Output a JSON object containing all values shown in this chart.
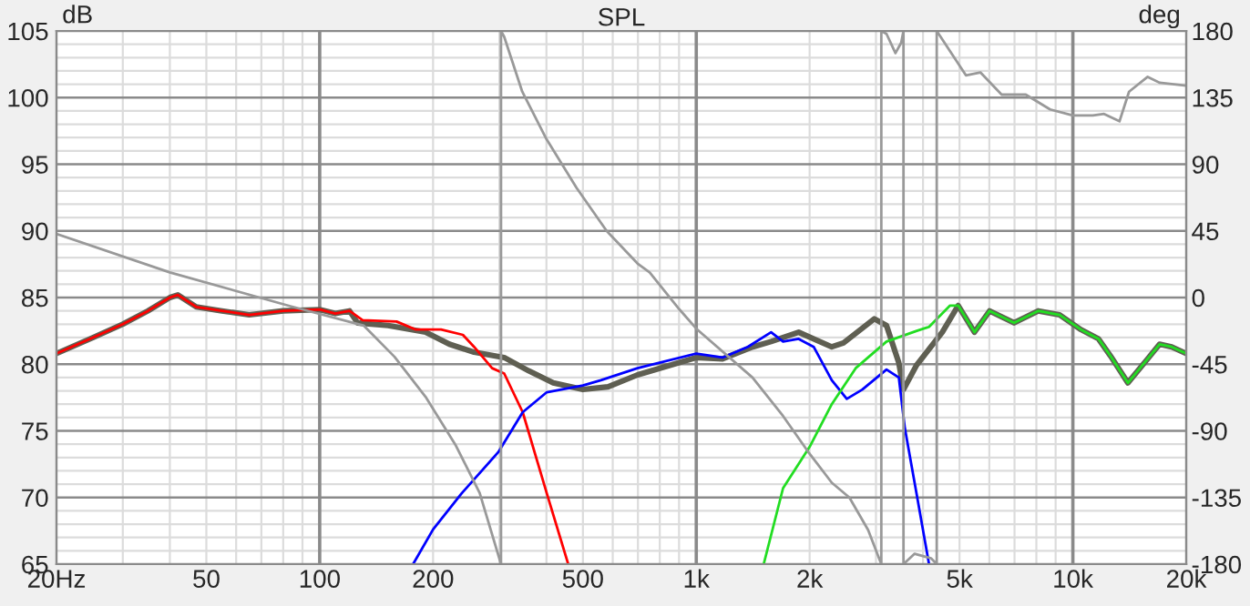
{
  "chart_data": {
    "type": "line",
    "title": "SPL",
    "ylabel": "dB",
    "y2label": "deg",
    "log": "x",
    "grid": true,
    "legend": false,
    "xlim": [
      20,
      20000
    ],
    "xticks": [
      {
        "value": 20,
        "label": "20Hz"
      },
      50,
      100,
      200,
      500,
      {
        "value": 1000,
        "label": "1k"
      },
      {
        "value": 2000,
        "label": "2k"
      },
      {
        "value": 5000,
        "label": "5k"
      },
      {
        "value": 10000,
        "label": "10k"
      },
      {
        "value": 20000,
        "label": "20k"
      }
    ],
    "ylim": [
      65,
      105
    ],
    "yticks": [
      65,
      70,
      75,
      80,
      85,
      90,
      95,
      100,
      105
    ],
    "y2lim": [
      -180,
      180
    ],
    "y2ticks": [
      -180,
      -135,
      -90,
      -45,
      0,
      45,
      90,
      135,
      180
    ],
    "series": [
      {
        "color": "#999999",
        "axis": "y2",
        "x": [
          20,
          40,
          84,
          131,
          158,
          191,
          230,
          266,
          303,
          303,
          309,
          345,
          400,
          481,
          578,
          698,
          752,
          902,
          1000,
          1410,
          1700,
          1980,
          2290,
          2550,
          2860,
          3100,
          3100,
          3200,
          3380,
          3500,
          3550,
          3550,
          3800,
          4200,
          4350,
          4350,
          4900,
          5200,
          5680,
          6470,
          7500,
          8700,
          10000,
          11300,
          12100,
          13300,
          14100,
          15800,
          17000,
          20000
        ],
        "values": [
          43,
          17,
          -6,
          -19,
          -40,
          -67,
          -100,
          -132,
          -180,
          180,
          176,
          139,
          107,
          74,
          45,
          23,
          17,
          -8,
          -21,
          -54,
          -80,
          -104,
          -125,
          -135,
          -157,
          -180,
          180,
          178,
          165,
          172,
          180,
          -180,
          -173,
          -176,
          -180,
          180,
          160,
          150,
          152,
          137,
          137,
          127,
          123,
          123,
          124,
          119,
          139,
          149,
          145,
          143
        ]
      },
      {
        "color": "#5f5f52",
        "x": [
          20,
          25,
          30,
          35,
          40,
          42,
          47,
          55,
          65,
          80,
          100,
          110,
          120,
          126,
          152,
          191,
          221,
          257,
          309,
          359,
          417,
          500,
          583,
          698,
          1000,
          1174,
          1413,
          1580,
          1870,
          2290,
          2460,
          2970,
          3200,
          3450,
          3550,
          3840,
          4500,
          4960,
          5480,
          6010,
          6980,
          8090,
          9220,
          10500,
          11700,
          12600,
          14000,
          15800,
          17000,
          18300,
          20000
        ],
        "values": [
          80.8,
          82.0,
          83.0,
          84.0,
          85.0,
          85.2,
          84.3,
          84.0,
          83.7,
          84.0,
          84.1,
          83.8,
          84.0,
          83.1,
          82.9,
          82.4,
          81.5,
          80.9,
          80.5,
          79.5,
          78.6,
          78.1,
          78.3,
          79.2,
          80.5,
          80.4,
          81.3,
          81.7,
          82.4,
          81.3,
          81.6,
          83.4,
          82.9,
          80.1,
          78.1,
          79.9,
          82.4,
          84.4,
          82.4,
          84.0,
          83.1,
          84.0,
          83.7,
          82.6,
          81.9,
          80.6,
          78.6,
          80.4,
          81.5,
          81.3,
          80.8
        ]
      },
      {
        "color": "#ff0000",
        "x": [
          20,
          25,
          30,
          35,
          40,
          42,
          47,
          55,
          65,
          80,
          100,
          110,
          120,
          130,
          160,
          180,
          210,
          240,
          257,
          287,
          309,
          346,
          401,
          457
        ],
        "values": [
          80.8,
          82.0,
          83.0,
          84.0,
          85.0,
          85.2,
          84.3,
          84.0,
          83.7,
          84.0,
          84.1,
          83.8,
          84.0,
          83.3,
          83.2,
          82.6,
          82.6,
          82.2,
          81.3,
          79.7,
          79.3,
          76.4,
          70.3,
          65
        ]
      },
      {
        "color": "#0000ff",
        "x": [
          177,
          200,
          238,
          298,
          346,
          401,
          500,
          558,
          698,
          1000,
          1174,
          1370,
          1580,
          1700,
          1870,
          2050,
          2290,
          2510,
          2760,
          3200,
          3450,
          3580,
          3850,
          4150
        ],
        "values": [
          65,
          67.6,
          70.3,
          73.4,
          76.4,
          77.9,
          78.4,
          78.8,
          79.7,
          80.8,
          80.5,
          81.3,
          82.4,
          81.7,
          81.9,
          81.3,
          78.8,
          77.4,
          78.1,
          79.6,
          79.0,
          75.2,
          70.2,
          65
        ]
      },
      {
        "color": "#22dd22",
        "x": [
          1510,
          1700,
          2000,
          2290,
          2650,
          3200,
          3850,
          4150,
          4720,
          4960,
          5480,
          6010,
          6980,
          8090,
          9220,
          10500,
          11700,
          12600,
          14000,
          15800,
          17000,
          18300,
          20000
        ],
        "values": [
          65,
          70.7,
          73.8,
          77.0,
          79.7,
          81.7,
          82.5,
          82.8,
          84.4,
          84.4,
          82.4,
          84.0,
          83.1,
          84.0,
          83.7,
          82.6,
          81.9,
          80.6,
          78.6,
          80.4,
          81.5,
          81.3,
          80.8
        ]
      }
    ]
  }
}
